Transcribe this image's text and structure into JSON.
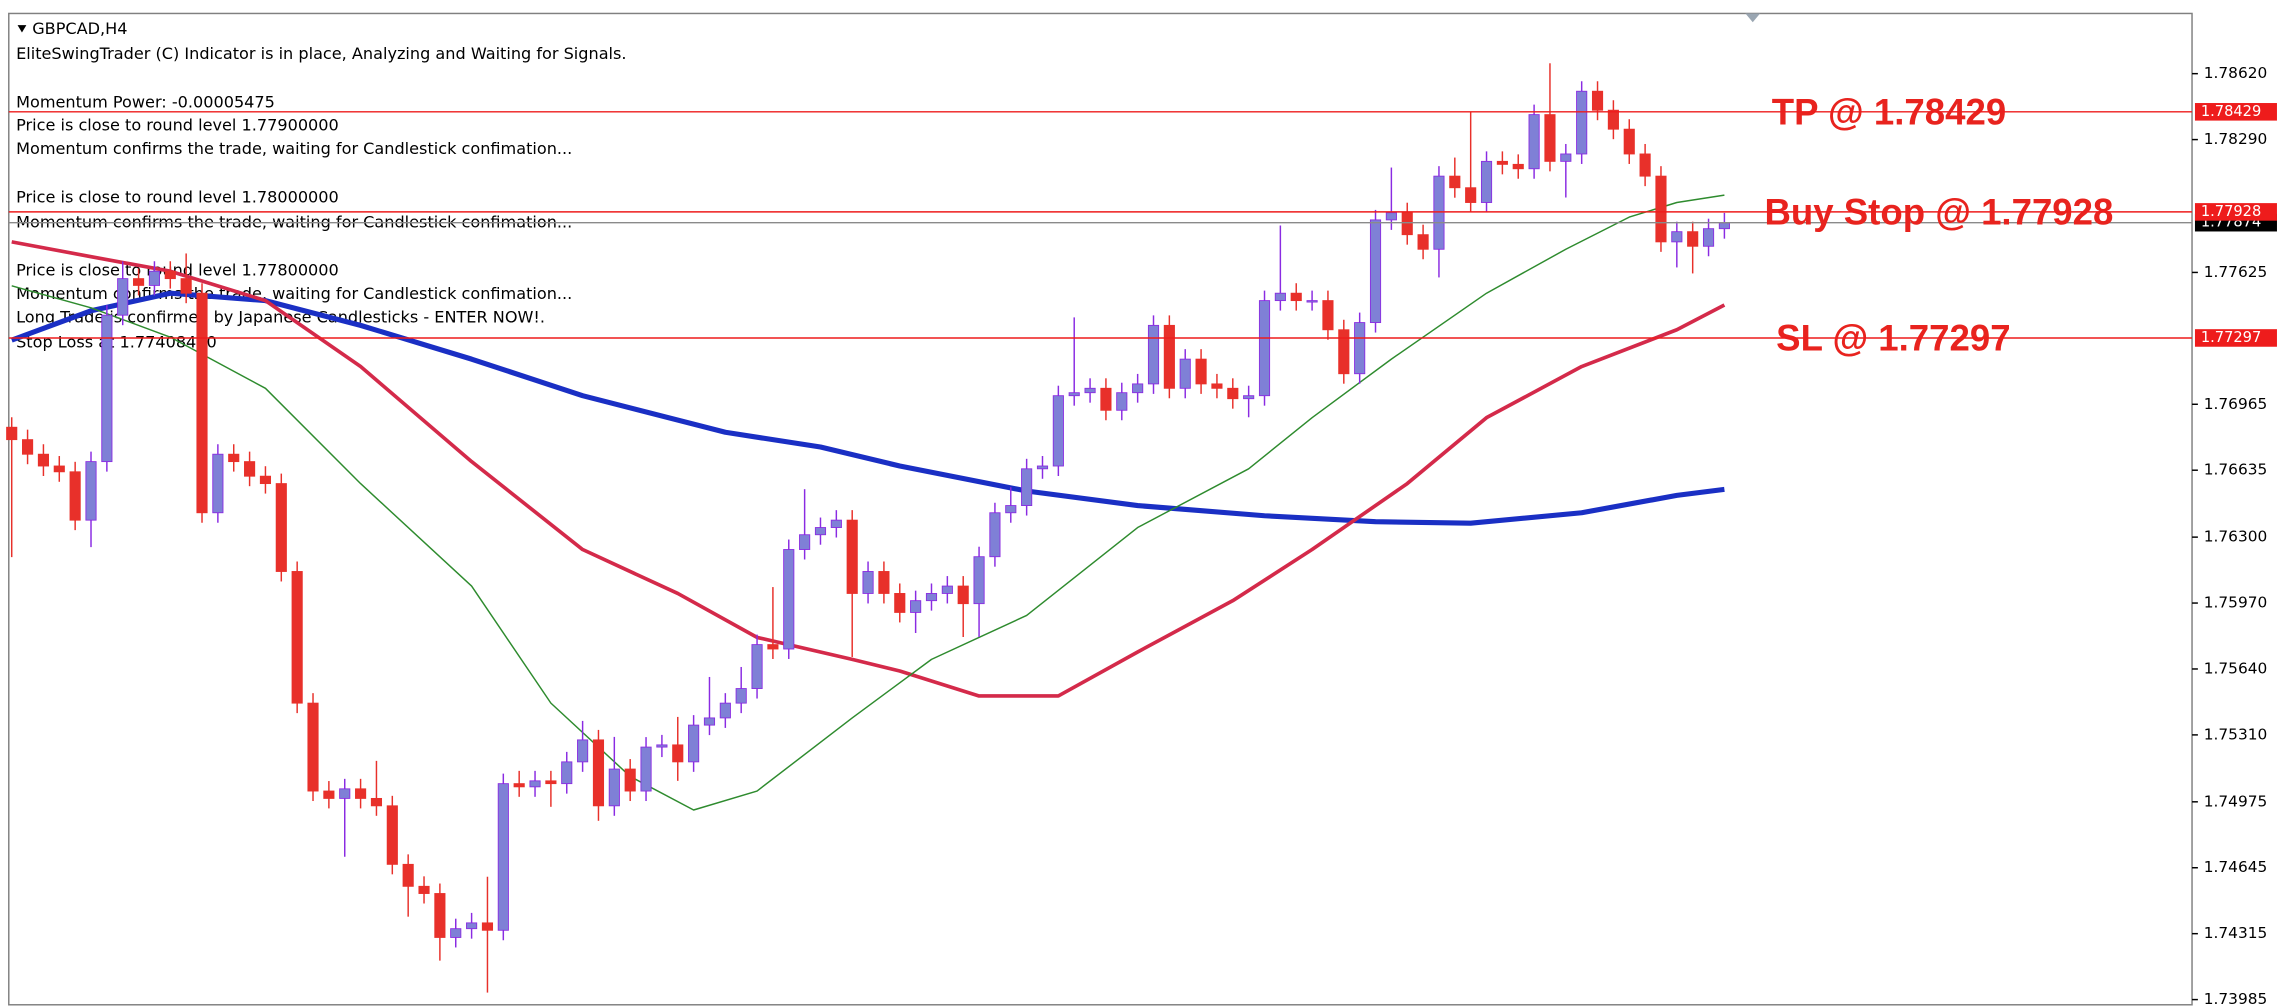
{
  "chart_data": {
    "type": "candlestick",
    "title": "GBPCAD,H4",
    "annotations": [
      "EliteSwingTrader (C) Indicator is in place, Analyzing and Waiting for Signals.",
      "Momentum Power: -0.00005475",
      "Price is close to round level 1.77900000",
      "Momentum confirms the trade, waiting for Candlestick confimation...",
      "Price is close to round level 1.78000000",
      "Momentum confirms the trade, waiting for Candlestick confimation...",
      "Price is close to round level 1.77800000",
      "Momentum confirms the trade, waiting for Candlestick confimation...",
      "Long Trade is confirmed by Japanese Candlesticks - ENTER NOW!.",
      "Stop Loss at 1.77408400"
    ],
    "up_color": "#7f80d6",
    "down_color": "#e8302a",
    "wick_color": "#8a2be2",
    "open": [
      1.7685,
      1.76788,
      1.76715,
      1.76656,
      1.76627,
      1.76385,
      1.76678,
      1.77411,
      1.77594,
      1.7756,
      1.77631,
      1.77594,
      1.77521,
      1.76422,
      1.76715,
      1.76678,
      1.76605,
      1.76568,
      1.76128,
      1.75469,
      1.75029,
      1.74992,
      1.7504,
      1.74992,
      1.74955,
      1.74662,
      1.74552,
      1.74516,
      1.74296,
      1.7434,
      1.74369,
      1.74332,
      1.75066,
      1.7505,
      1.7508,
      1.75066,
      1.75175,
      1.75285,
      1.74955,
      1.75139,
      1.75029,
      1.75249,
      1.7526,
      1.75175,
      1.75359,
      1.75395,
      1.75469,
      1.75542,
      1.75762,
      1.7574,
      1.76238,
      1.76312,
      1.76348,
      1.76385,
      1.76018,
      1.76128,
      1.76018,
      1.75923,
      1.75982,
      1.76018,
      1.76055,
      1.75967,
      1.76202,
      1.76422,
      1.76458,
      1.76642,
      1.76656,
      1.77008,
      1.77023,
      1.77045,
      1.76935,
      1.77023,
      1.77067,
      1.7736,
      1.77045,
      1.77191,
      1.77067,
      1.77045,
      1.76993,
      1.77008,
      1.77484,
      1.77521,
      1.77484,
      1.77484,
      1.77338,
      1.77118,
      1.77374,
      1.77888,
      1.77924,
      1.77814,
      1.77741,
      1.78107,
      1.78049,
      1.77975,
      1.78181,
      1.78166,
      1.78144,
      1.78415,
      1.78181,
      1.78218,
      1.78532,
      1.78437,
      1.78342,
      1.78218,
      1.78107,
      1.77778,
      1.77829,
      1.77756,
      1.77844
    ],
    "high": [
      1.769,
      1.76838,
      1.76765,
      1.76706,
      1.76677,
      1.76728,
      1.77461,
      1.7768,
      1.77644,
      1.77681,
      1.77681,
      1.7772,
      1.77571,
      1.76765,
      1.76765,
      1.76728,
      1.76655,
      1.76618,
      1.76178,
      1.75519,
      1.75079,
      1.7509,
      1.7509,
      1.7518,
      1.75005,
      1.74712,
      1.74602,
      1.74566,
      1.7439,
      1.74419,
      1.746,
      1.75116,
      1.7513,
      1.7513,
      1.7513,
      1.75225,
      1.7538,
      1.75335,
      1.753,
      1.75189,
      1.75299,
      1.7531,
      1.754,
      1.75409,
      1.756,
      1.75519,
      1.7565,
      1.75812,
      1.7605,
      1.76288,
      1.7654,
      1.76398,
      1.76435,
      1.76435,
      1.76178,
      1.76178,
      1.76068,
      1.76032,
      1.76068,
      1.76105,
      1.76105,
      1.76252,
      1.76472,
      1.7655,
      1.76692,
      1.76706,
      1.77058,
      1.774,
      1.77095,
      1.77095,
      1.77073,
      1.77117,
      1.7741,
      1.7741,
      1.77241,
      1.77241,
      1.77117,
      1.77095,
      1.77058,
      1.77534,
      1.7786,
      1.77571,
      1.77534,
      1.77534,
      1.77388,
      1.77424,
      1.77938,
      1.7815,
      1.77974,
      1.77864,
      1.78157,
      1.782,
      1.78429,
      1.78231,
      1.78231,
      1.78216,
      1.78465,
      1.78672,
      1.78268,
      1.78582,
      1.78582,
      1.78487,
      1.78392,
      1.78268,
      1.78157,
      1.77879,
      1.77879,
      1.77894,
      1.77923
    ],
    "low": [
      1.762,
      1.76665,
      1.76606,
      1.76577,
      1.76335,
      1.7625,
      1.76628,
      1.77361,
      1.7751,
      1.7751,
      1.77544,
      1.77471,
      1.76372,
      1.76372,
      1.76628,
      1.76555,
      1.76518,
      1.76078,
      1.75419,
      1.74979,
      1.74942,
      1.747,
      1.74942,
      1.74905,
      1.74612,
      1.744,
      1.74466,
      1.7418,
      1.74246,
      1.7429,
      1.7402,
      1.74282,
      1.75,
      1.75,
      1.7495,
      1.75016,
      1.75125,
      1.7488,
      1.74905,
      1.74979,
      1.74979,
      1.75199,
      1.7508,
      1.75125,
      1.75309,
      1.75345,
      1.75419,
      1.75492,
      1.7569,
      1.7569,
      1.76188,
      1.76262,
      1.76298,
      1.757,
      1.75968,
      1.75968,
      1.75873,
      1.7582,
      1.75932,
      1.75968,
      1.758,
      1.758,
      1.76152,
      1.76372,
      1.76408,
      1.76592,
      1.76606,
      1.76958,
      1.76973,
      1.76885,
      1.76885,
      1.76973,
      1.77017,
      1.76995,
      1.76995,
      1.77017,
      1.76995,
      1.76943,
      1.769,
      1.76958,
      1.77434,
      1.77434,
      1.77434,
      1.77288,
      1.77068,
      1.77068,
      1.77324,
      1.77838,
      1.77764,
      1.77691,
      1.776,
      1.77999,
      1.77925,
      1.77925,
      1.78116,
      1.78094,
      1.78094,
      1.78131,
      1.78,
      1.78168,
      1.78387,
      1.78292,
      1.78168,
      1.78057,
      1.77728,
      1.7765,
      1.7762,
      1.77706,
      1.77794
    ],
    "close": [
      1.76788,
      1.76715,
      1.76656,
      1.76627,
      1.76385,
      1.76678,
      1.77411,
      1.77594,
      1.7756,
      1.77631,
      1.77594,
      1.77521,
      1.76422,
      1.76715,
      1.76678,
      1.76605,
      1.76568,
      1.76128,
      1.75469,
      1.75029,
      1.74992,
      1.7504,
      1.74992,
      1.74955,
      1.74662,
      1.74552,
      1.74516,
      1.74296,
      1.7434,
      1.74369,
      1.74332,
      1.75066,
      1.7505,
      1.7508,
      1.75066,
      1.75175,
      1.75285,
      1.74955,
      1.75139,
      1.75029,
      1.75249,
      1.7526,
      1.75175,
      1.75359,
      1.75395,
      1.75469,
      1.75542,
      1.75762,
      1.7574,
      1.76238,
      1.76312,
      1.76348,
      1.76385,
      1.76018,
      1.76128,
      1.76018,
      1.75923,
      1.75982,
      1.76018,
      1.76055,
      1.75967,
      1.76202,
      1.76422,
      1.76458,
      1.76642,
      1.76656,
      1.77008,
      1.77023,
      1.77045,
      1.76935,
      1.77023,
      1.77067,
      1.7736,
      1.77045,
      1.77191,
      1.77067,
      1.77045,
      1.76993,
      1.77008,
      1.77484,
      1.77521,
      1.77484,
      1.77484,
      1.77338,
      1.77118,
      1.77374,
      1.77888,
      1.77924,
      1.77814,
      1.77741,
      1.78107,
      1.78049,
      1.77975,
      1.78181,
      1.78166,
      1.78144,
      1.78415,
      1.78181,
      1.78218,
      1.78532,
      1.78437,
      1.78342,
      1.78218,
      1.78107,
      1.77778,
      1.77829,
      1.77756,
      1.77844,
      1.77873
    ],
    "series": [
      {
        "color": "#1a2fc4",
        "x": [
          0,
          5,
          10,
          16,
          22,
          29,
          36,
          45,
          51,
          56,
          64,
          71,
          79,
          86,
          92,
          99,
          105,
          108
        ],
        "values": [
          1.77286,
          1.77433,
          1.77521,
          1.77484,
          1.7736,
          1.77191,
          1.77008,
          1.76825,
          1.76751,
          1.76656,
          1.76531,
          1.76458,
          1.76407,
          1.76377,
          1.7637,
          1.76422,
          1.76509,
          1.76539
        ]
      },
      {
        "color": "#d42a4a",
        "x": [
          0,
          5,
          10,
          16,
          22,
          29,
          36,
          42,
          47,
          53,
          56,
          61,
          66,
          71,
          77,
          82,
          88,
          93,
          99,
          105,
          108
        ],
        "values": [
          1.77778,
          1.77704,
          1.77631,
          1.77484,
          1.77154,
          1.76678,
          1.76238,
          1.76018,
          1.75798,
          1.75688,
          1.7563,
          1.75505,
          1.75505,
          1.75725,
          1.75982,
          1.76238,
          1.76568,
          1.76898,
          1.77154,
          1.77338,
          1.77462
        ]
      },
      {
        "color": "#2e8b2e",
        "x": [
          0,
          5,
          10,
          16,
          22,
          29,
          34,
          39,
          43,
          47,
          53,
          58,
          64,
          71,
          78,
          82,
          87,
          93,
          98,
          102,
          105,
          108
        ],
        "values": [
          1.77558,
          1.77448,
          1.77301,
          1.77045,
          1.76568,
          1.76055,
          1.75469,
          1.75102,
          1.74934,
          1.75029,
          1.75395,
          1.75688,
          1.75908,
          1.76348,
          1.76642,
          1.76898,
          1.77191,
          1.77521,
          1.77741,
          1.77902,
          1.77975,
          1.78012
        ]
      }
    ],
    "levels": [
      {
        "value": 1.78429,
        "label": "TP @ 1.78429"
      },
      {
        "value": 1.77928,
        "label": "Buy Stop @ 1.77928"
      },
      {
        "value": 1.77297,
        "label": "SL @ 1.77297"
      }
    ],
    "level_color": "#ee1c1c",
    "current_price": 1.77874,
    "ylim": [
      1.73959,
      1.78914
    ],
    "yticks": [
      {
        "value": 1.7862,
        "label": "1.78620"
      },
      {
        "value": 1.7829,
        "label": "1.78290"
      },
      {
        "value": 1.77625,
        "label": "1.77625"
      },
      {
        "value": 1.76965,
        "label": "1.76965"
      },
      {
        "value": 1.76635,
        "label": "1.76635"
      },
      {
        "value": 1.763,
        "label": "1.76300"
      },
      {
        "value": 1.7597,
        "label": "1.75970"
      },
      {
        "value": 1.7564,
        "label": "1.75640"
      },
      {
        "value": 1.7531,
        "label": "1.75310"
      },
      {
        "value": 1.74975,
        "label": "1.74975"
      },
      {
        "value": 1.74645,
        "label": "1.74645"
      },
      {
        "value": 1.74315,
        "label": "1.74315"
      },
      {
        "value": 1.73985,
        "label": "1.73985"
      }
    ]
  }
}
